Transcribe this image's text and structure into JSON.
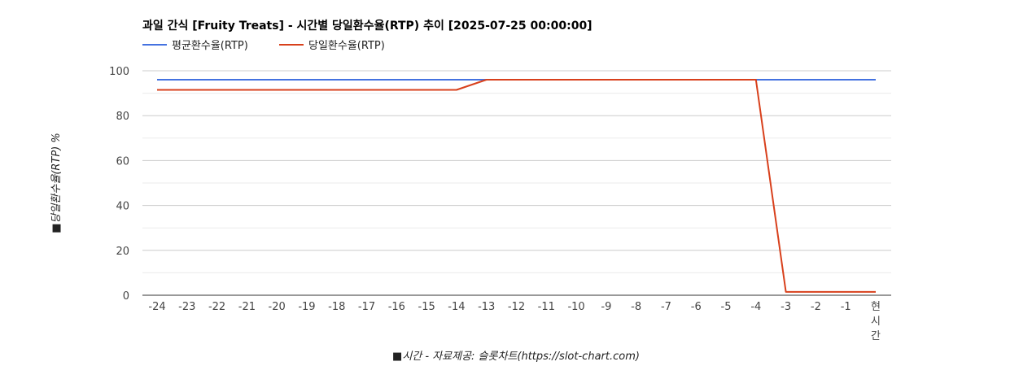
{
  "chart_data": {
    "type": "line",
    "title": "과일 간식 [Fruity Treats] - 시간별 당일환수율(RTP) 추이 [2025-07-25 00:00:00]",
    "xlabel": "■시간 - 자료제공: 슬롯차트(https://slot-chart.com)",
    "ylabel": "■당일환수율(RTP) %",
    "ylim": [
      0,
      100
    ],
    "yticks": [
      0,
      20,
      40,
      60,
      80,
      100
    ],
    "grid": true,
    "legend_position": "top-left",
    "categories": [
      "-24",
      "-23",
      "-22",
      "-21",
      "-20",
      "-19",
      "-18",
      "-17",
      "-16",
      "-15",
      "-14",
      "-13",
      "-12",
      "-11",
      "-10",
      "-9",
      "-8",
      "-7",
      "-6",
      "-5",
      "-4",
      "-3",
      "-2",
      "-1",
      "현시간"
    ],
    "series": [
      {
        "name": "평균환수율(RTP)",
        "color": "#4472e0",
        "values": [
          96,
          96,
          96,
          96,
          96,
          96,
          96,
          96,
          96,
          96,
          96,
          96,
          96,
          96,
          96,
          96,
          96,
          96,
          96,
          96,
          96,
          96,
          96,
          96,
          96
        ]
      },
      {
        "name": "당일환수율(RTP)",
        "color": "#d8401c",
        "values": [
          91.5,
          91.5,
          91.5,
          91.5,
          91.5,
          91.5,
          91.5,
          91.5,
          91.5,
          91.5,
          91.5,
          96,
          96,
          96,
          96,
          96,
          96,
          96,
          96,
          96,
          96,
          1.5,
          1.5,
          1.5,
          1.5
        ]
      }
    ]
  }
}
